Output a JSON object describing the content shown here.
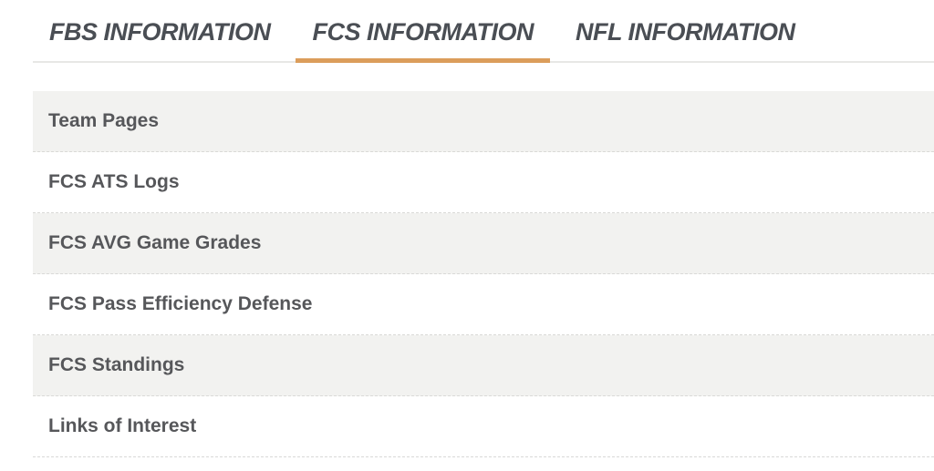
{
  "tabs": {
    "items": [
      {
        "label": "FBS INFORMATION"
      },
      {
        "label": "FCS INFORMATION"
      },
      {
        "label": "NFL INFORMATION"
      }
    ],
    "active_index": 1
  },
  "menu": {
    "items": [
      {
        "label": "Team Pages"
      },
      {
        "label": "FCS ATS Logs"
      },
      {
        "label": "FCS AVG Game Grades"
      },
      {
        "label": "FCS Pass Efficiency Defense"
      },
      {
        "label": "FCS Standings"
      },
      {
        "label": "Links of Interest"
      }
    ]
  },
  "colors": {
    "active_tab_underline": "#DB9D5B",
    "tab_text": "#4A4E54",
    "item_text": "#56575A",
    "item_alt_background": "#F2F2F0",
    "tab_divider": "#E7E7E5",
    "item_divider": "#D9D9D7"
  }
}
